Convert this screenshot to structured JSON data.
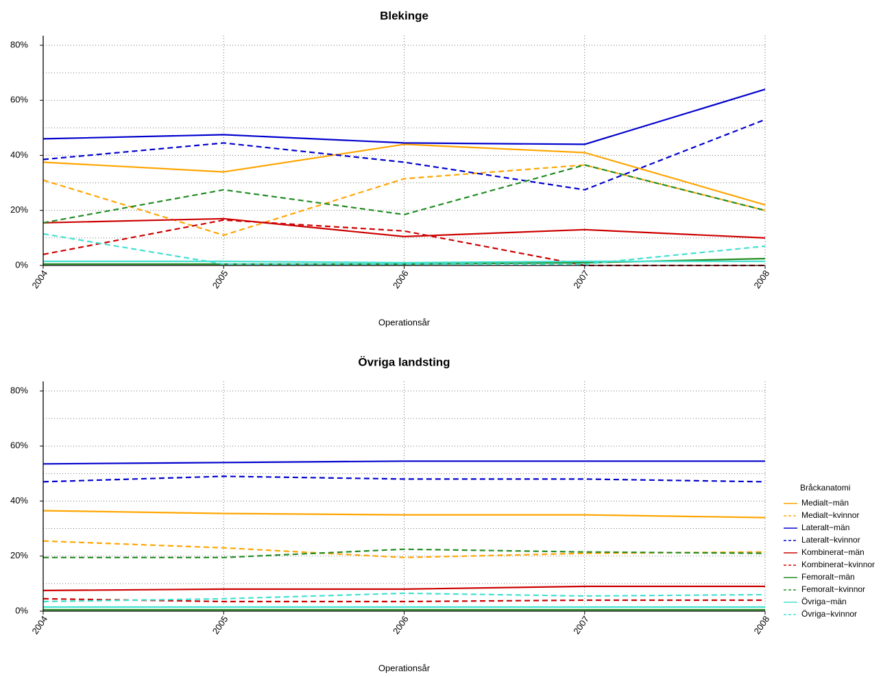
{
  "chart_data": [
    {
      "type": "line",
      "title": "Blekinge",
      "xlabel": "Operationsår",
      "ylabel": "",
      "x": [
        "2004",
        "2005",
        "2006",
        "2007",
        "2008"
      ],
      "yticks": [
        "0%",
        "20%",
        "40%",
        "60%",
        "80%"
      ],
      "ylim": [
        0,
        80
      ],
      "grid": true,
      "series": [
        {
          "name": "Medialt−män",
          "color": "#FFA500",
          "dash": false,
          "values": [
            37.5,
            34.0,
            44.0,
            41.0,
            22.0
          ]
        },
        {
          "name": "Medialt−kvinnor",
          "color": "#FFA500",
          "dash": true,
          "values": [
            31.0,
            11.0,
            31.5,
            36.5,
            20.0
          ]
        },
        {
          "name": "Lateralt−män",
          "color": "#0000CD",
          "dash": false,
          "values": [
            46.0,
            47.5,
            44.5,
            44.0,
            64.0
          ]
        },
        {
          "name": "Lateralt−kvinnor",
          "color": "#0000CD",
          "dash": true,
          "values": [
            38.5,
            44.5,
            37.5,
            27.5,
            53.0
          ]
        },
        {
          "name": "Kombinerat−män",
          "color": "#CD0000",
          "dash": false,
          "values": [
            15.5,
            17.0,
            10.5,
            13.0,
            10.0
          ]
        },
        {
          "name": "Kombinerat−kvinnor",
          "color": "#CD0000",
          "dash": true,
          "values": [
            4.0,
            16.5,
            12.5,
            0.0,
            0.0
          ]
        },
        {
          "name": "Femoralt−män",
          "color": "#228B22",
          "dash": false,
          "values": [
            0.5,
            0.5,
            0.5,
            1.0,
            2.5
          ]
        },
        {
          "name": "Femoralt−kvinnor",
          "color": "#228B22",
          "dash": true,
          "values": [
            15.5,
            27.5,
            18.5,
            36.5,
            20.0
          ]
        },
        {
          "name": "Övriga−män",
          "color": "#40E0D0",
          "dash": false,
          "values": [
            1.5,
            1.5,
            1.0,
            1.5,
            1.5
          ]
        },
        {
          "name": "Övriga−kvinnor",
          "color": "#40E0D0",
          "dash": true,
          "values": [
            11.5,
            0.5,
            0.5,
            0.5,
            7.0
          ]
        }
      ]
    },
    {
      "type": "line",
      "title": "Övriga landsting",
      "xlabel": "Operationsår",
      "ylabel": "",
      "x": [
        "2004",
        "2005",
        "2006",
        "2007",
        "2008"
      ],
      "yticks": [
        "0%",
        "20%",
        "40%",
        "60%",
        "80%"
      ],
      "ylim": [
        0,
        80
      ],
      "grid": true,
      "legend_title": "Bråckanatomi",
      "legend_position": "right",
      "series": [
        {
          "name": "Medialt−män",
          "color": "#FFA500",
          "dash": false,
          "values": [
            36.5,
            35.5,
            35.0,
            35.0,
            34.0
          ]
        },
        {
          "name": "Medialt−kvinnor",
          "color": "#FFA500",
          "dash": true,
          "values": [
            25.5,
            23.0,
            19.5,
            21.0,
            21.5
          ]
        },
        {
          "name": "Lateralt−män",
          "color": "#0000CD",
          "dash": false,
          "values": [
            53.5,
            54.0,
            54.5,
            54.5,
            54.5
          ]
        },
        {
          "name": "Lateralt−kvinnor",
          "color": "#0000CD",
          "dash": true,
          "values": [
            47.0,
            49.0,
            48.0,
            48.0,
            47.0
          ]
        },
        {
          "name": "Kombinerat−män",
          "color": "#CD0000",
          "dash": false,
          "values": [
            7.5,
            8.0,
            8.0,
            9.0,
            9.0
          ]
        },
        {
          "name": "Kombinerat−kvinnor",
          "color": "#CD0000",
          "dash": true,
          "values": [
            4.5,
            3.5,
            3.5,
            4.0,
            4.0
          ]
        },
        {
          "name": "Femoralt−män",
          "color": "#228B22",
          "dash": false,
          "values": [
            0.5,
            0.5,
            0.5,
            0.5,
            0.5
          ]
        },
        {
          "name": "Femoralt−kvinnor",
          "color": "#228B22",
          "dash": true,
          "values": [
            19.5,
            19.5,
            22.5,
            21.5,
            21.0
          ]
        },
        {
          "name": "Övriga−män",
          "color": "#40E0D0",
          "dash": false,
          "values": [
            1.5,
            1.5,
            1.5,
            1.5,
            1.5
          ]
        },
        {
          "name": "Övriga−kvinnor",
          "color": "#40E0D0",
          "dash": true,
          "values": [
            3.5,
            4.5,
            6.5,
            5.5,
            6.0
          ]
        }
      ]
    }
  ]
}
